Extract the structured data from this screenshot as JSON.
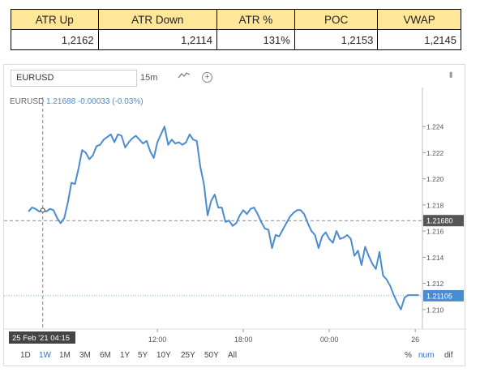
{
  "stats": {
    "headers": [
      "ATR Up",
      "ATR Down",
      "ATR %",
      "POC",
      "VWAP"
    ],
    "values": [
      "1,2162",
      "1,2114",
      "131%",
      "1,2153",
      "1,2145"
    ],
    "header_color": "#ffe699"
  },
  "toolbar": {
    "symbol": "EURUSD",
    "interval": "15m",
    "chart_type_icon": "line-chart-icon",
    "add_icon": "plus-icon",
    "more_icon": "more-vertical-icon"
  },
  "legend": {
    "symbol": "EURUSD",
    "price": "1.21688",
    "change": "-0.00033 (-0.03%)"
  },
  "crosshair": {
    "time_label": "25 Feb '21 04:15",
    "price_label": "1.21680"
  },
  "last_price_label": "1.21105",
  "chart_data": {
    "type": "line",
    "ylim": [
      1.2085,
      1.2255
    ],
    "y_ticks": [
      "1.224",
      "1.222",
      "1.220",
      "1.218",
      "1.216",
      "1.214",
      "1.212",
      "1.210"
    ],
    "y_tick_values": [
      1.224,
      1.222,
      1.22,
      1.218,
      1.216,
      1.214,
      1.212,
      1.21
    ],
    "x_ticks": [
      "12:00",
      "18:00",
      "00:00",
      "26"
    ],
    "x_tick_positions": [
      36,
      60,
      84,
      108
    ],
    "xlim": [
      -5,
      110
    ],
    "crosshair_x": 4,
    "crosshair_y": 1.2168,
    "last_price": 1.21105,
    "line_color": "#4a8bd1",
    "series": [
      {
        "values": [
          1.2175,
          1.2178,
          1.2177,
          1.2175,
          1.2176,
          1.2175,
          1.2177,
          1.2176,
          1.217,
          1.2166,
          1.217,
          1.2182,
          1.2197,
          1.2196,
          1.2208,
          1.2222,
          1.222,
          1.2215,
          1.2218,
          1.2225,
          1.2226,
          1.223,
          1.2232,
          1.2234,
          1.2228,
          1.2234,
          1.2233,
          1.2224,
          1.2228,
          1.2231,
          1.2233,
          1.223,
          1.2227,
          1.2229,
          1.2221,
          1.2216,
          1.2228,
          1.2234,
          1.224,
          1.2226,
          1.223,
          1.2227,
          1.2228,
          1.2226,
          1.2228,
          1.2234,
          1.223,
          1.2229,
          1.2209,
          1.2196,
          1.2172,
          1.2183,
          1.2188,
          1.2178,
          1.2178,
          1.2167,
          1.2168,
          1.2164,
          1.2166,
          1.2172,
          1.2176,
          1.2173,
          1.2177,
          1.2178,
          1.2173,
          1.2167,
          1.2162,
          1.2161,
          1.2147,
          1.2157,
          1.2156,
          1.2161,
          1.2166,
          1.2171,
          1.2174,
          1.2176,
          1.2176,
          1.2173,
          1.2166,
          1.216,
          1.2157,
          1.2147,
          1.2156,
          1.2159,
          1.2154,
          1.2151,
          1.216,
          1.2154,
          1.2155,
          1.2157,
          1.2154,
          1.2141,
          1.2145,
          1.2134,
          1.2148,
          1.2141,
          1.2135,
          1.2131,
          1.2144,
          1.2126,
          1.2123,
          1.2118,
          1.2111,
          1.2105,
          1.21,
          1.2109,
          1.2111,
          1.2111,
          1.2111,
          1.2111
        ]
      }
    ]
  }
}
